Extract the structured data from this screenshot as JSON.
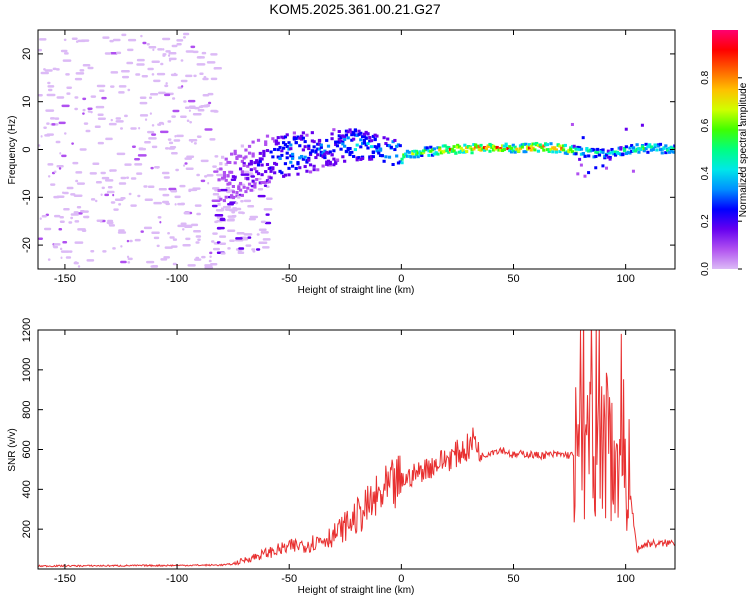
{
  "figure": {
    "title": "KOM5.2025.361.00.21.G27"
  },
  "chart_data": [
    {
      "type": "heatmap",
      "title": "",
      "xlabel": "Height of straight line (km)",
      "ylabel": "Frequency (Hz)",
      "xlim": [
        -162,
        122
      ],
      "ylim": [
        -25,
        25
      ],
      "xticks": [
        -150,
        -100,
        -50,
        0,
        50,
        100
      ],
      "yticks": [
        -20,
        -10,
        0,
        10,
        20
      ],
      "colorbar": {
        "label": "Normalized spectral amplitude",
        "range": [
          0,
          1
        ],
        "ticks": [
          0.0,
          0.2,
          0.4,
          0.6,
          0.8
        ],
        "tick_labels": [
          "0.0",
          "0.2",
          "0.4",
          "0.6",
          "0.8"
        ],
        "colors": [
          "#dcbaf6",
          "#b050f0",
          "#6600f0",
          "#0000ff",
          "#0090ff",
          "#00e8e8",
          "#00ff80",
          "#40ff00",
          "#d0ff00",
          "#ffc000",
          "#ff6000",
          "#ff0000",
          "#ff0070"
        ]
      },
      "trace": {
        "x": [
          -80,
          -70,
          -60,
          -50,
          -40,
          -30,
          -20,
          -10,
          0,
          10,
          20,
          30,
          40,
          50,
          60,
          70,
          80,
          90,
          100,
          110,
          122
        ],
        "center_hz": [
          -7,
          -4,
          -2,
          -1,
          -0.5,
          0.5,
          1,
          0,
          -1,
          -0.5,
          0,
          0.2,
          0.3,
          0.2,
          0.5,
          0.3,
          -0.5,
          -1,
          0,
          0.3,
          0
        ],
        "amplitude": [
          0.12,
          0.18,
          0.25,
          0.35,
          0.3,
          0.3,
          0.4,
          0.35,
          0.55,
          0.6,
          0.75,
          0.85,
          0.8,
          0.75,
          0.82,
          0.78,
          0.6,
          0.45,
          0.5,
          0.55,
          0.45
        ]
      }
    },
    {
      "type": "line",
      "title": "",
      "xlabel": "Height of straight line (km)",
      "ylabel": "SNR (v/v)",
      "xlim": [
        -162,
        122
      ],
      "ylim": [
        0,
        1200
      ],
      "xticks": [
        -150,
        -100,
        -50,
        0,
        50,
        100
      ],
      "yticks": [
        200,
        400,
        600,
        800,
        1000,
        1200
      ],
      "color": "#e83030",
      "x": [
        -162,
        -100,
        -80,
        -75,
        -70,
        -60,
        -50,
        -40,
        -30,
        -20,
        -10,
        0,
        10,
        20,
        30,
        33,
        35,
        40,
        45,
        50,
        55,
        60,
        70,
        77,
        80,
        85,
        90,
        95,
        100,
        105,
        110,
        115,
        122
      ],
      "y": [
        15,
        18,
        20,
        25,
        45,
        80,
        110,
        130,
        170,
        260,
        360,
        440,
        500,
        550,
        610,
        660,
        560,
        590,
        600,
        570,
        580,
        570,
        575,
        570,
        600,
        580,
        620,
        600,
        580,
        100,
        130,
        125,
        135
      ]
    }
  ]
}
